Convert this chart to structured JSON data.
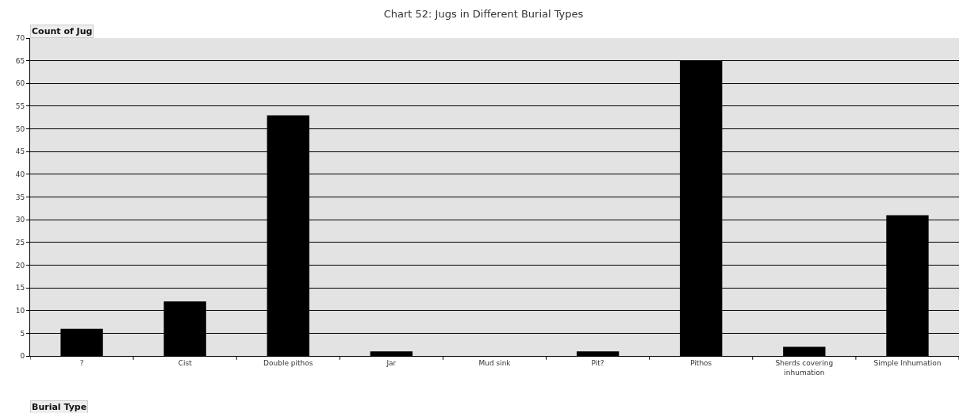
{
  "chart_data": {
    "type": "bar",
    "title": "Chart 52: Jugs in Different Burial Types",
    "xlabel": "Burial Type",
    "ylabel": "Count of Jug",
    "categories": [
      "?",
      "Cist",
      "Double pithos",
      "Jar",
      "Mud sink",
      "Pit?",
      "Pithos",
      "Sherds covering inhumation",
      "Simple Inhumation"
    ],
    "values": [
      6,
      12,
      53,
      1,
      0,
      1,
      65,
      2,
      31
    ],
    "color": "#000000",
    "ylim": [
      0,
      70
    ],
    "yticks": [
      0,
      5,
      10,
      15,
      20,
      25,
      30,
      35,
      40,
      45,
      50,
      55,
      60,
      65,
      70
    ],
    "grid": "y"
  }
}
